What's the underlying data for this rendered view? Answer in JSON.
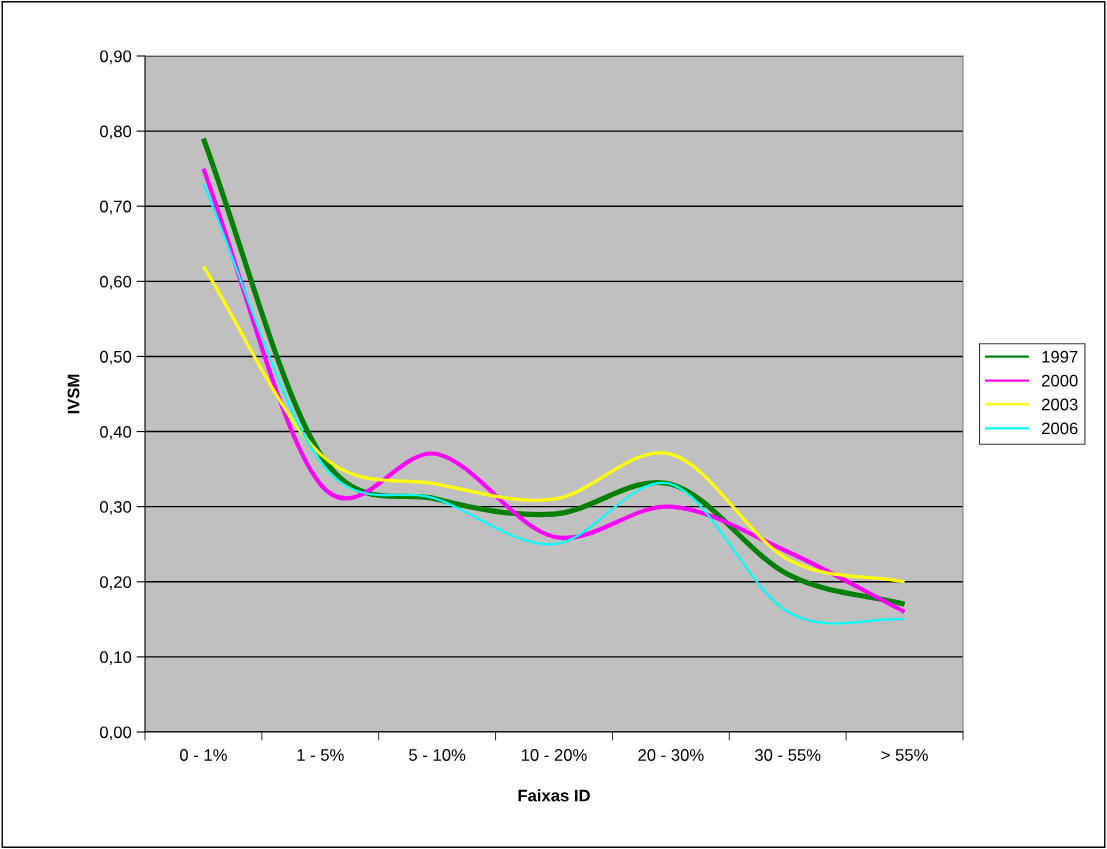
{
  "chart_data": {
    "type": "line",
    "xlabel": "Faixas ID",
    "ylabel": "IVSM",
    "categories": [
      "0 - 1%",
      "1 - 5%",
      "5 - 10%",
      "10 - 20%",
      "20 - 30%",
      "30 - 55%",
      "> 55%"
    ],
    "series": [
      {
        "name": "1997",
        "color": "#008000",
        "values": [
          0.79,
          0.37,
          0.31,
          0.29,
          0.33,
          0.21,
          0.17
        ]
      },
      {
        "name": "2000",
        "color": "#ff00ff",
        "values": [
          0.75,
          0.33,
          0.37,
          0.26,
          0.3,
          0.24,
          0.16
        ]
      },
      {
        "name": "2003",
        "color": "#ffff00",
        "values": [
          0.62,
          0.37,
          0.33,
          0.31,
          0.37,
          0.23,
          0.2
        ]
      },
      {
        "name": "2006",
        "color": "#00ffff",
        "values": [
          0.73,
          0.36,
          0.31,
          0.25,
          0.33,
          0.16,
          0.15
        ]
      }
    ],
    "ylim": [
      0,
      0.9
    ],
    "yticks": [
      {
        "value": 0,
        "label": "0,00"
      },
      {
        "value": 0.1,
        "label": "0,10"
      },
      {
        "value": 0.2,
        "label": "0,20"
      },
      {
        "value": 0.3,
        "label": "0,30"
      },
      {
        "value": 0.4,
        "label": "0,40"
      },
      {
        "value": 0.5,
        "label": "0,50"
      },
      {
        "value": 0.6,
        "label": "0,60"
      },
      {
        "value": 0.7,
        "label": "0,70"
      },
      {
        "value": 0.8,
        "label": "0,80"
      },
      {
        "value": 0.9,
        "label": "0,90"
      }
    ],
    "grid": "y",
    "legend": "right",
    "marker": "none",
    "line_style": "solid"
  }
}
